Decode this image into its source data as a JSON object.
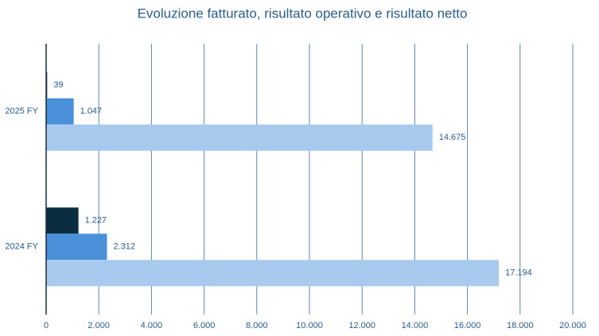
{
  "chart_data": {
    "type": "hbar",
    "title": "Evoluzione fatturato, risultato operativo e risultato netto",
    "categories": [
      "2025 FY",
      "2024 FY"
    ],
    "series": [
      {
        "color": "#0b2d40",
        "values": [
          39,
          1227
        ],
        "value_labels": [
          "39",
          "1.227"
        ]
      },
      {
        "color": "#4a90d9",
        "values": [
          1047,
          2312
        ],
        "value_labels": [
          "1.047",
          "2.312"
        ]
      },
      {
        "color": "#a8caee",
        "values": [
          14675,
          17194
        ],
        "value_labels": [
          "14.675",
          "17.194"
        ]
      }
    ],
    "xlim": [
      0,
      20000
    ],
    "xticks": [
      0,
      {
        "value": 2000,
        "label": "2.000"
      },
      {
        "value": 4000,
        "label": "4.000"
      },
      {
        "value": 6000,
        "label": "6.000"
      },
      {
        "value": 8000,
        "label": "8.000"
      },
      {
        "value": 10000,
        "label": "10.000"
      },
      {
        "value": 12000,
        "label": "12.000"
      },
      {
        "value": 14000,
        "label": "14.000"
      },
      {
        "value": 16000,
        "label": "16.000"
      },
      {
        "value": 18000,
        "label": "18.000"
      },
      {
        "value": 20000,
        "label": "20.000"
      }
    ],
    "grid": true
  }
}
